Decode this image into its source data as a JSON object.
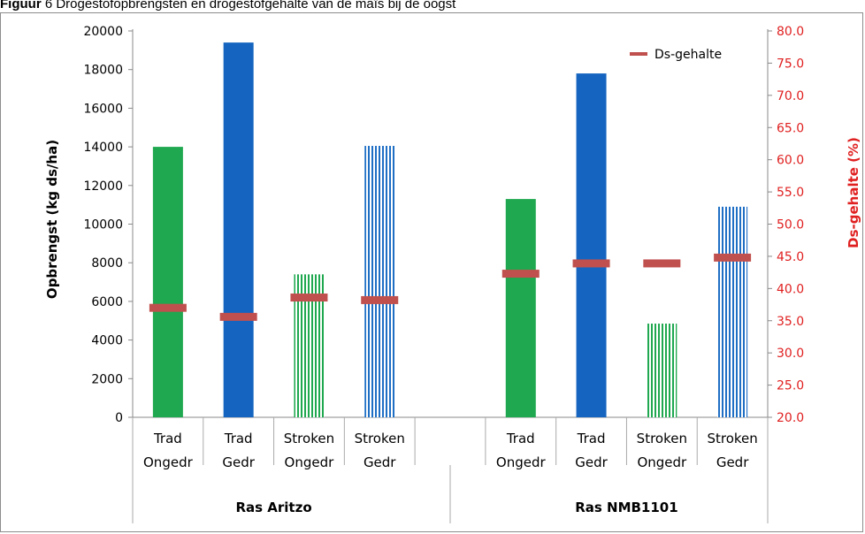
{
  "figure_header": {
    "label": "Figuur",
    "text": " 6 Drogestofopbrengsten en drogestofgehalte van de maïs bij de oogst"
  },
  "colors": {
    "trad_ongedr": "#1fa84f",
    "trad_gedr": "#1565c0",
    "stroken_ongedr": "#1fa84f",
    "stroken_gedr": "#1f6fc5",
    "ds_marker": "#c0504d",
    "right_axis": "#e02020"
  },
  "chart_data": {
    "type": "bar",
    "title": "",
    "ylabel": "Opbrengst (kg ds/ha)",
    "y2label": "Ds-gehalte (%)",
    "ylim": [
      0,
      20000
    ],
    "y_ticks": [
      "0",
      "2000",
      "4000",
      "6000",
      "8000",
      "10000",
      "12000",
      "14000",
      "16000",
      "18000",
      "20000"
    ],
    "y2lim": [
      20,
      80
    ],
    "y2_ticks": [
      "20.0",
      "25.0",
      "30.0",
      "35.0",
      "40.0",
      "45.0",
      "50.0",
      "55.0",
      "60.0",
      "65.0",
      "70.0",
      "75.0",
      "80.0"
    ],
    "grid": false,
    "legend": {
      "position": "top-right",
      "entries": [
        "Ds-gehalte"
      ]
    },
    "groups": [
      {
        "name": "Ras Aritzo",
        "categories": [
          {
            "line1": "Trad",
            "line2": "Ongedr",
            "style": "trad_ongedr",
            "yield": 14000,
            "ds": 37.0
          },
          {
            "line1": "Trad",
            "line2": "Gedr",
            "style": "trad_gedr",
            "yield": 19400,
            "ds": 35.6
          },
          {
            "line1": "Stroken",
            "line2": "Ongedr",
            "style": "stroken_ongedr",
            "yield": 7400,
            "ds": 38.6
          },
          {
            "line1": "Stroken",
            "line2": "Gedr",
            "style": "stroken_gedr",
            "yield": 14050,
            "ds": 38.2
          }
        ]
      },
      {
        "name": "Ras NMB1101",
        "categories": [
          {
            "line1": "Trad",
            "line2": "Ongedr",
            "style": "trad_ongedr",
            "yield": 11300,
            "ds": 42.3
          },
          {
            "line1": "Trad",
            "line2": "Gedr",
            "style": "trad_gedr",
            "yield": 17800,
            "ds": 43.9
          },
          {
            "line1": "Stroken",
            "line2": "Ongedr",
            "style": "stroken_ongedr",
            "yield": 4850,
            "ds": 43.9
          },
          {
            "line1": "Stroken",
            "line2": "Gedr",
            "style": "stroken_gedr",
            "yield": 10900,
            "ds": 44.8
          }
        ]
      }
    ]
  }
}
